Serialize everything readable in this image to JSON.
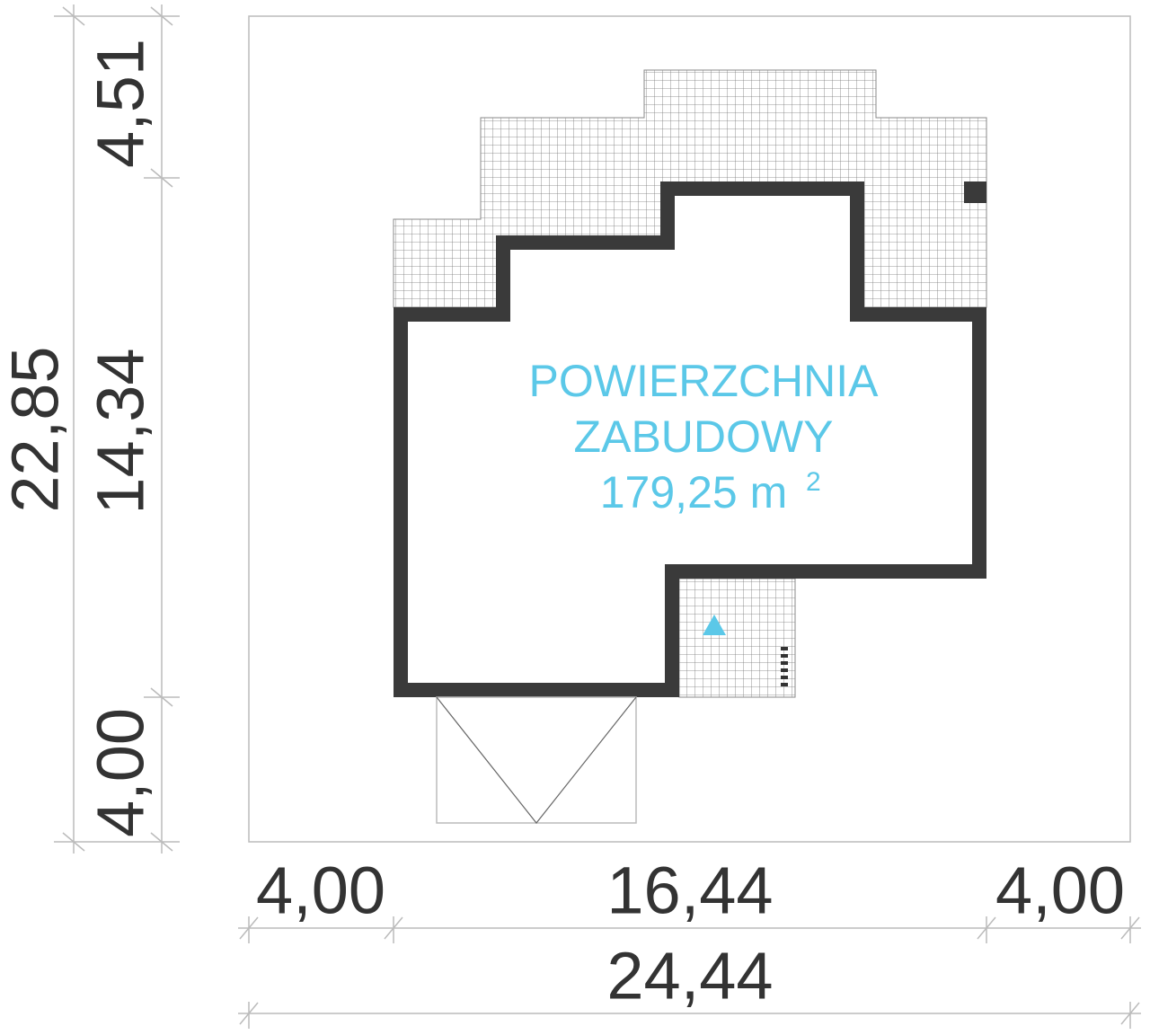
{
  "dimensions": {
    "left_outer": "22,85",
    "left_inner": [
      "4,51",
      "14,34",
      "4,00"
    ],
    "bottom_inner": [
      "4,00",
      "16,44",
      "4,00"
    ],
    "bottom_outer": "24,44"
  },
  "area": {
    "lines": [
      "POWIERZCHNIA",
      "ZABUDOWY"
    ],
    "value": "179,25 m",
    "superscript": "2"
  }
}
